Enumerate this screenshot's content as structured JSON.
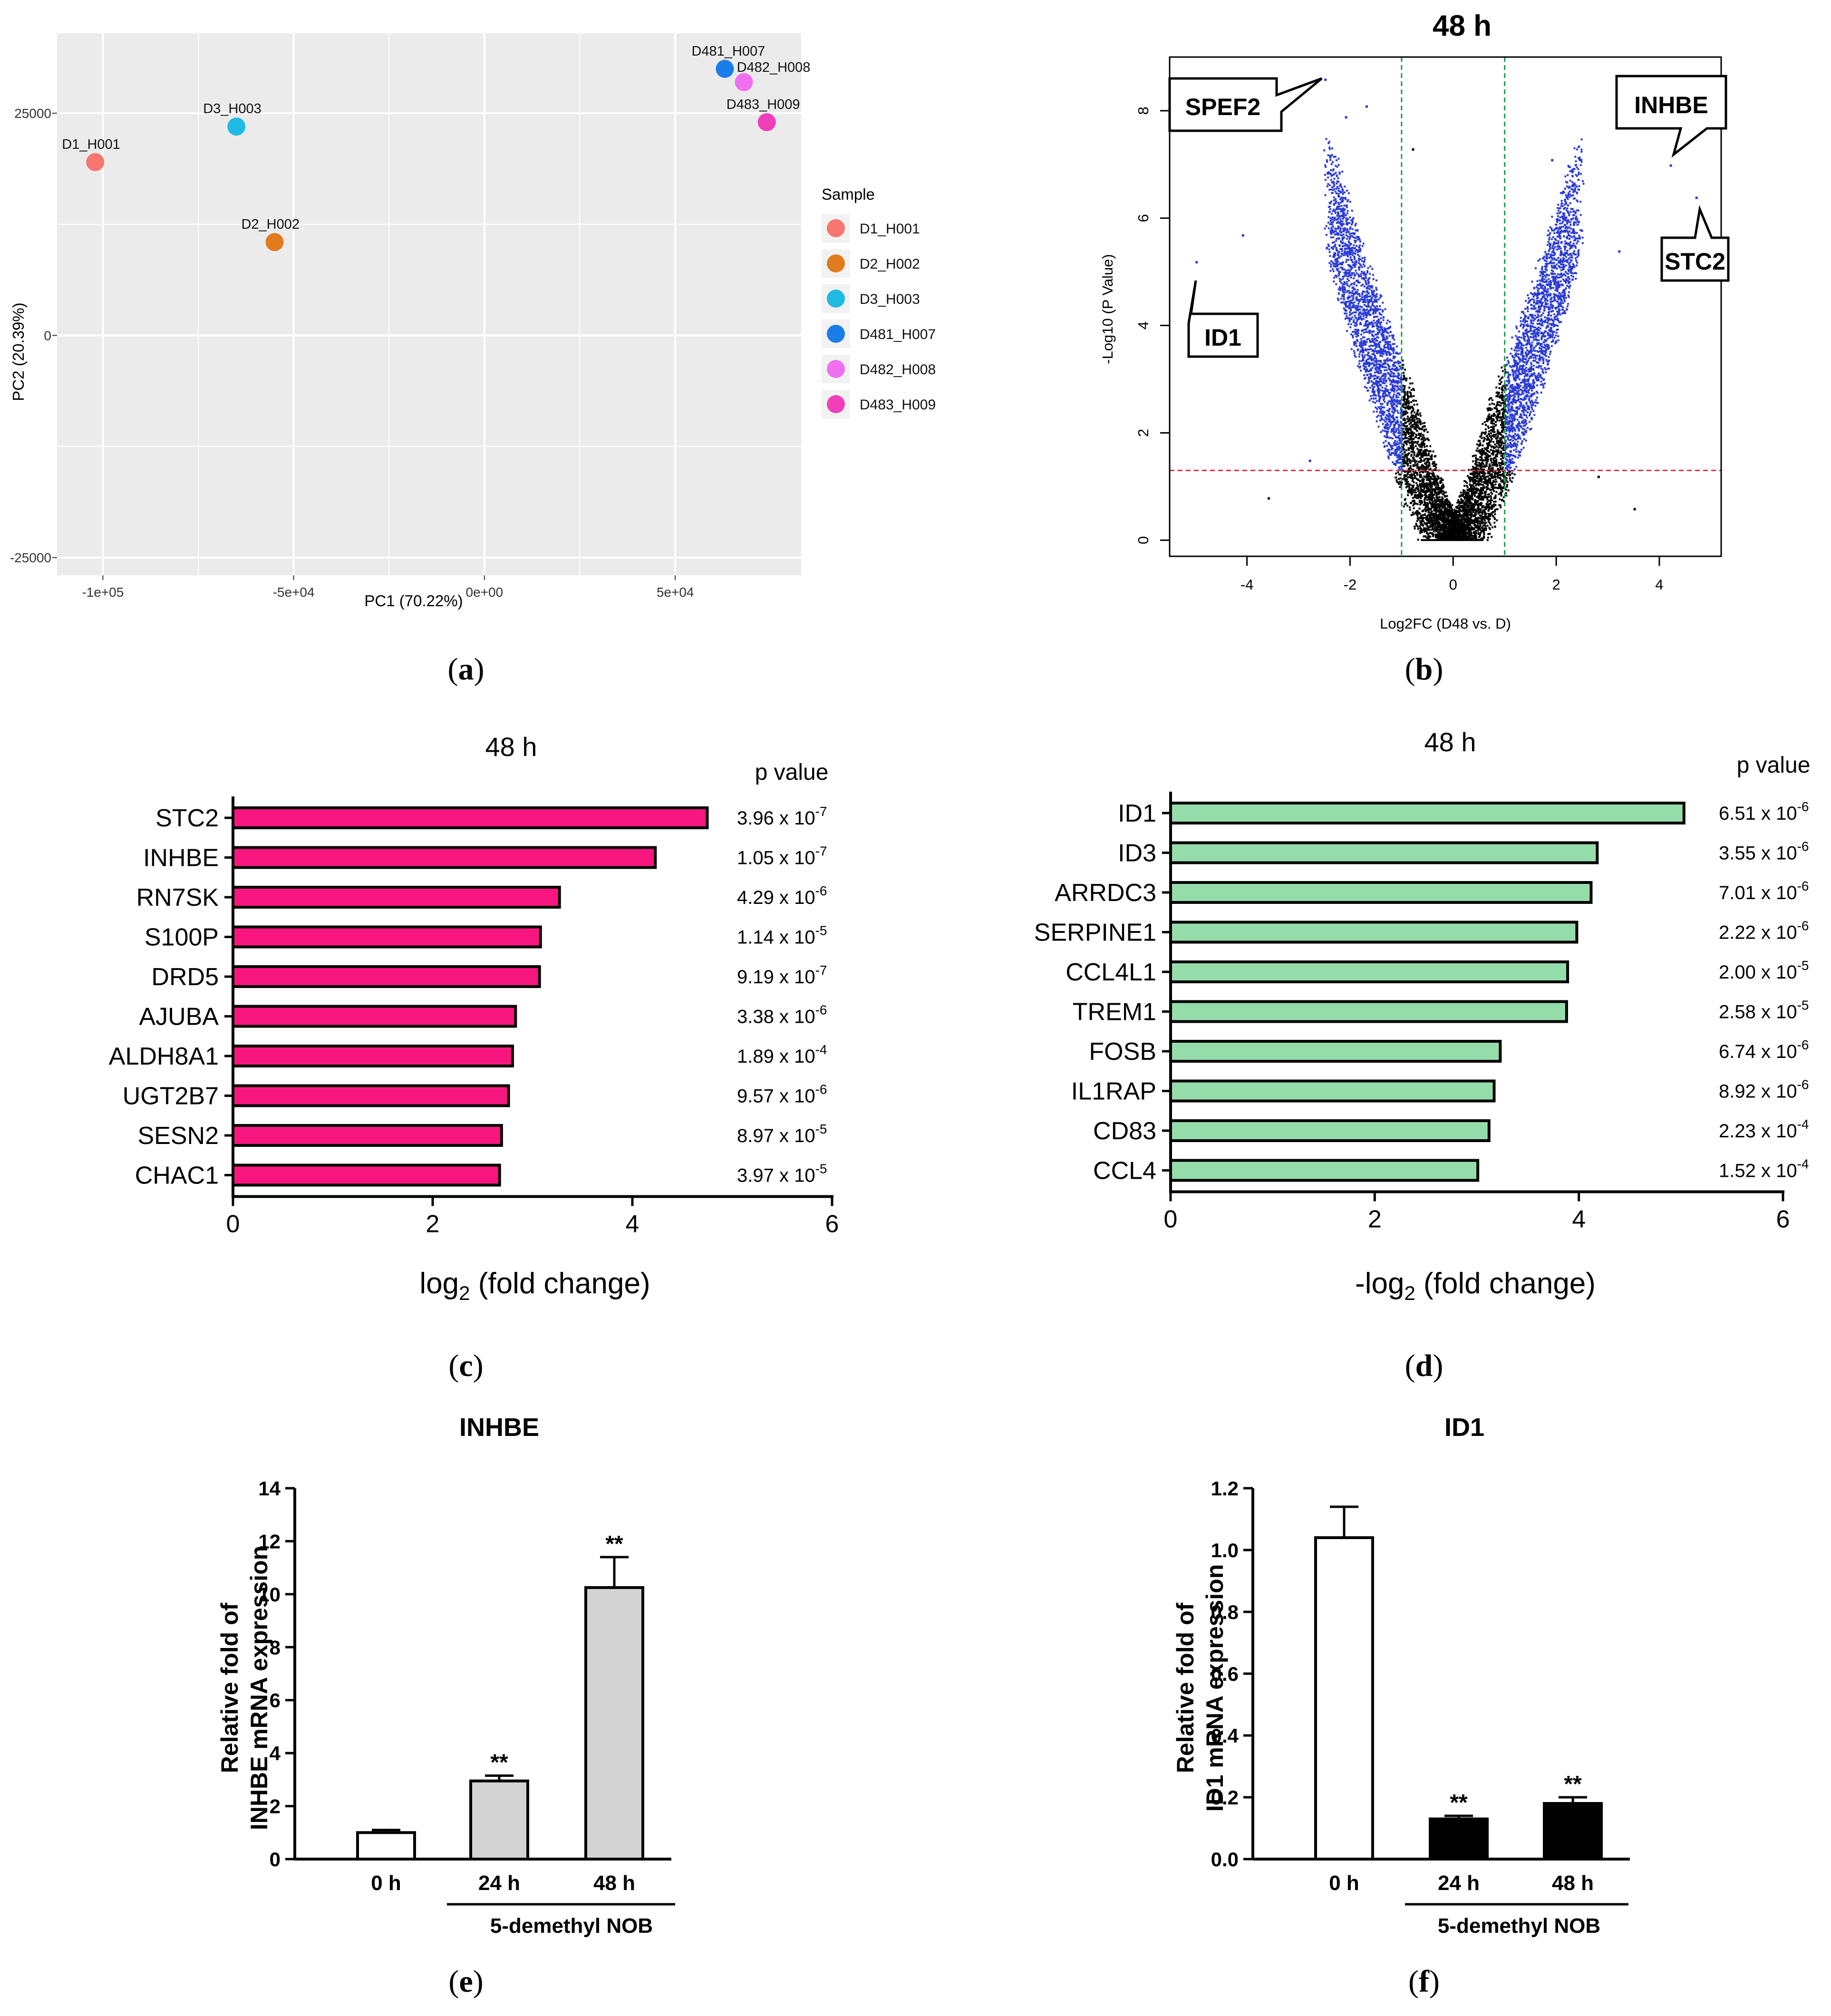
{
  "panel_labels": [
    "a",
    "b",
    "c",
    "d",
    "e",
    "f"
  ],
  "chart_data": [
    {
      "id": "a",
      "type": "scatter",
      "xlabel": "PC1 (70.22%)",
      "ylabel": "PC2 (20.39%)",
      "xticks": [
        "-1e+05",
        "-5e+04",
        "0e+00",
        "5e+04"
      ],
      "xtick_values": [
        -100000,
        -50000,
        0,
        50000
      ],
      "yticks": [
        "-25000",
        "0",
        "25000"
      ],
      "ytick_values": [
        -25000,
        0,
        25000
      ],
      "xlim": [
        -112000,
        83000
      ],
      "ylim": [
        -27000,
        34000
      ],
      "legend_title": "Sample",
      "points": [
        {
          "label": "D1_H001",
          "x": -102000,
          "y": 19500,
          "color": "#f8766d"
        },
        {
          "label": "D2_H002",
          "x": -55000,
          "y": 10500,
          "color": "#e07b1e"
        },
        {
          "label": "D3_H003",
          "x": -65000,
          "y": 23500,
          "color": "#1fbbe3"
        },
        {
          "label": "D481_H007",
          "x": 63000,
          "y": 30000,
          "color": "#1a7de8"
        },
        {
          "label": "D482_H008",
          "x": 68000,
          "y": 28500,
          "color": "#f06ff0"
        },
        {
          "label": "D483_H009",
          "x": 74000,
          "y": 24000,
          "color": "#ee3fb8"
        }
      ]
    },
    {
      "id": "b",
      "type": "scatter",
      "title": "48 h",
      "xlabel": "Log2FC (D48 vs. D)",
      "ylabel": "-Log10 (P Value)",
      "xticks": [
        "-4",
        "-2",
        "0",
        "2",
        "4"
      ],
      "xtick_values": [
        -4,
        -2,
        0,
        2,
        4
      ],
      "yticks": [
        "0",
        "2",
        "4",
        "6",
        "8"
      ],
      "ytick_values": [
        0,
        2,
        4,
        6,
        8
      ],
      "xlim": [
        -5.5,
        5.2
      ],
      "ylim": [
        -0.3,
        9.0
      ],
      "fc_threshold": [
        -1,
        1
      ],
      "p_threshold": 1.3,
      "callouts": [
        "SPEF2",
        "INHBE",
        "ID1",
        "STC2"
      ]
    },
    {
      "id": "c",
      "type": "bar",
      "title": "48 h",
      "xlabel": "log",
      "xlabel_sub": "2",
      "xlabel_rest": " (fold change)",
      "pvalue_header": "p value",
      "xlim": [
        0,
        6
      ],
      "xticks": [
        "0",
        "2",
        "4",
        "6"
      ],
      "xtick_values": [
        0,
        2,
        4,
        6
      ],
      "bar_color": "#f7167f",
      "categories": [
        "STC2",
        "INHBE",
        "RN7SK",
        "S100P",
        "DRD5",
        "AJUBA",
        "ALDH8A1",
        "UGT2B7",
        "SESN2",
        "CHAC1"
      ],
      "values": [
        4.75,
        4.23,
        3.27,
        3.08,
        3.07,
        2.83,
        2.8,
        2.76,
        2.69,
        2.67
      ],
      "pvalues": [
        {
          "mant": "3.96 x 10",
          "exp": "-7"
        },
        {
          "mant": "1.05 x 10",
          "exp": "-7"
        },
        {
          "mant": "4.29 x 10",
          "exp": "-6"
        },
        {
          "mant": "1.14 x 10",
          "exp": "-5"
        },
        {
          "mant": "9.19 x 10",
          "exp": "-7"
        },
        {
          "mant": "3.38 x 10",
          "exp": "-6"
        },
        {
          "mant": "1.89 x 10",
          "exp": "-4"
        },
        {
          "mant": "9.57 x 10",
          "exp": "-6"
        },
        {
          "mant": "8.97 x 10",
          "exp": "-5"
        },
        {
          "mant": "3.97 x 10",
          "exp": "-5"
        }
      ]
    },
    {
      "id": "d",
      "type": "bar",
      "title": "48 h",
      "xlabel": "-log",
      "xlabel_sub": "2",
      "xlabel_rest": " (fold change)",
      "pvalue_header": "p value",
      "xlim": [
        0,
        6
      ],
      "xticks": [
        "0",
        "2",
        "4",
        "6"
      ],
      "xtick_values": [
        0,
        2,
        4,
        6
      ],
      "bar_color": "#95dcab",
      "categories": [
        "ID1",
        "ID3",
        "ARRDC3",
        "SERPINE1",
        "CCL4L1",
        "TREM1",
        "FOSB",
        "IL1RAP",
        "CD83",
        "CCL4"
      ],
      "values": [
        5.03,
        4.18,
        4.12,
        3.98,
        3.89,
        3.88,
        3.23,
        3.17,
        3.12,
        3.01
      ],
      "pvalues": [
        {
          "mant": "6.51 x 10",
          "exp": "-6"
        },
        {
          "mant": "3.55 x 10",
          "exp": "-6"
        },
        {
          "mant": "7.01 x 10",
          "exp": "-6"
        },
        {
          "mant": "2.22 x 10",
          "exp": "-6"
        },
        {
          "mant": "2.00 x 10",
          "exp": "-5"
        },
        {
          "mant": "2.58 x 10",
          "exp": "-5"
        },
        {
          "mant": "6.74 x 10",
          "exp": "-6"
        },
        {
          "mant": "8.92 x 10",
          "exp": "-6"
        },
        {
          "mant": "2.23 x 10",
          "exp": "-4"
        },
        {
          "mant": "1.52 x 10",
          "exp": "-4"
        }
      ]
    },
    {
      "id": "e",
      "type": "bar",
      "title": "INHBE",
      "ylabel_line1": "Relative fold of",
      "ylabel_line2": "INHBE mRNA expression",
      "categories": [
        "0 h",
        "24 h",
        "48 h"
      ],
      "values": [
        1.0,
        2.95,
        10.25
      ],
      "errors": [
        0.1,
        0.2,
        1.15
      ],
      "significance": [
        "",
        "**",
        "**"
      ],
      "bar_colors": [
        "#ffffff",
        "#d3d3d3",
        "#d3d3d3"
      ],
      "ylim": [
        0,
        14
      ],
      "yticks": [
        "0",
        "2",
        "4",
        "6",
        "8",
        "10",
        "12",
        "14"
      ],
      "ytick_values": [
        0,
        2,
        4,
        6,
        8,
        10,
        12,
        14
      ],
      "group_label": "5-demethyl NOB"
    },
    {
      "id": "f",
      "type": "bar",
      "title": "ID1",
      "ylabel_line1": "Relative fold of",
      "ylabel_line2": "ID1 mRNA expression",
      "categories": [
        "0 h",
        "24 h",
        "48 h"
      ],
      "values": [
        1.04,
        0.13,
        0.18
      ],
      "errors": [
        0.1,
        0.01,
        0.02
      ],
      "significance": [
        "",
        "**",
        "**"
      ],
      "bar_colors": [
        "#ffffff",
        "#000000",
        "#000000"
      ],
      "ylim": [
        0,
        1.2
      ],
      "yticks": [
        "0.0",
        "0.2",
        "0.4",
        "0.6",
        "0.8",
        "1.0",
        "1.2"
      ],
      "ytick_values": [
        0,
        0.2,
        0.4,
        0.6,
        0.8,
        1.0,
        1.2
      ],
      "group_label": "5-demethyl NOB"
    }
  ]
}
